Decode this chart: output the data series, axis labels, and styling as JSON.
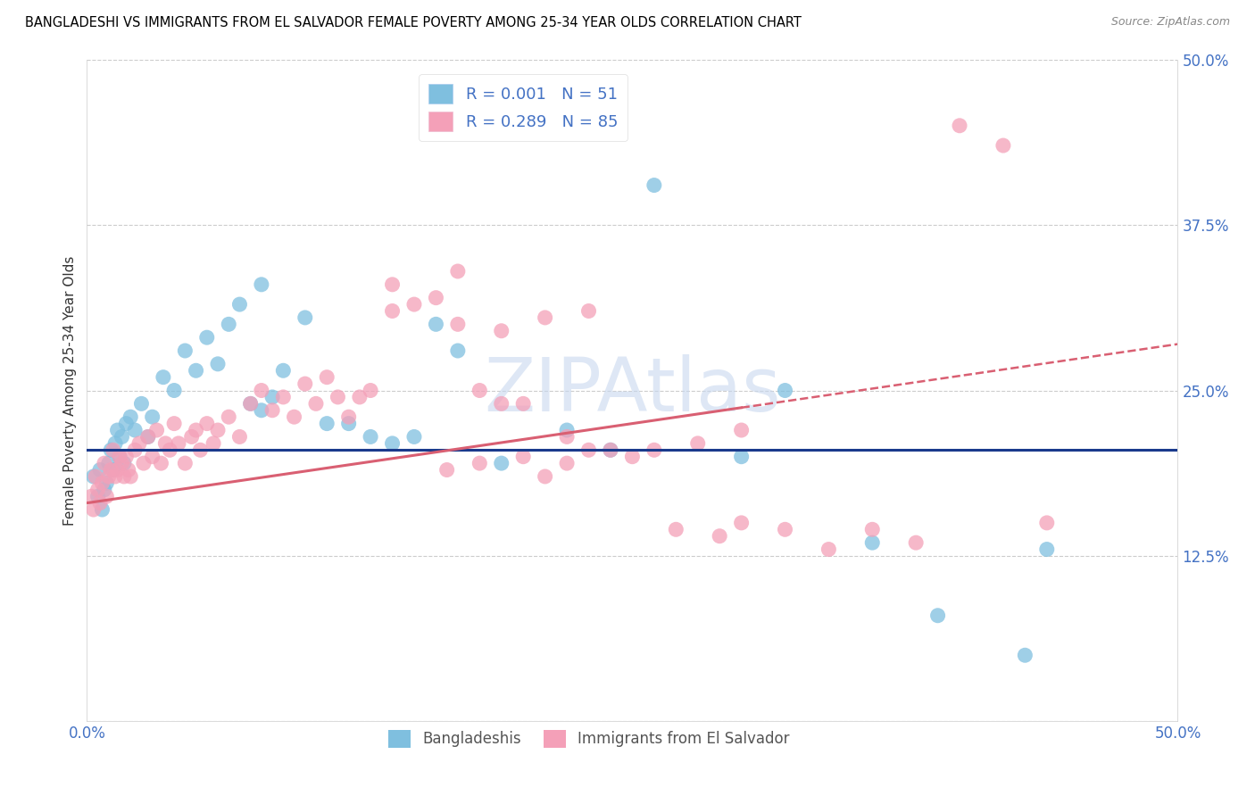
{
  "title": "BANGLADESHI VS IMMIGRANTS FROM EL SALVADOR FEMALE POVERTY AMONG 25-34 YEAR OLDS CORRELATION CHART",
  "source": "Source: ZipAtlas.com",
  "ylabel": "Female Poverty Among 25-34 Year Olds",
  "xlim": [
    0.0,
    50.0
  ],
  "ylim": [
    0.0,
    50.0
  ],
  "yticks": [
    0.0,
    12.5,
    25.0,
    37.5,
    50.0
  ],
  "ytick_labels": [
    "",
    "12.5%",
    "25.0%",
    "37.5%",
    "50.0%"
  ],
  "xticks": [
    0.0,
    12.5,
    25.0,
    37.5,
    50.0
  ],
  "xtick_labels": [
    "0.0%",
    "",
    "",
    "",
    "50.0%"
  ],
  "legend_r1": "R = 0.001",
  "legend_n1": "N = 51",
  "legend_r2": "R = 0.289",
  "legend_n2": "N = 85",
  "color_blue": "#7fbfdf",
  "color_pink": "#f4a0b8",
  "color_blue_line": "#1a3a8c",
  "color_pink_line": "#d95f72",
  "watermark": "ZIPAtlas",
  "watermark_color": "#c8d8ef",
  "title_fontsize": 10.5,
  "blue_line_y": 20.5,
  "pink_line_x0": 0.0,
  "pink_line_y0": 16.5,
  "pink_line_x1": 50.0,
  "pink_line_y1": 28.5,
  "pink_solid_x1": 30.0,
  "bangladeshi_x": [
    0.3,
    0.5,
    0.6,
    0.7,
    0.8,
    0.9,
    1.0,
    1.1,
    1.2,
    1.3,
    1.4,
    1.5,
    1.6,
    1.7,
    1.8,
    2.0,
    2.2,
    2.5,
    2.8,
    3.0,
    3.5,
    4.0,
    4.5,
    5.0,
    5.5,
    6.0,
    6.5,
    7.0,
    7.5,
    8.0,
    8.5,
    9.0,
    10.0,
    11.0,
    12.0,
    13.0,
    14.0,
    15.0,
    16.0,
    17.0,
    19.0,
    22.0,
    24.0,
    26.0,
    30.0,
    32.0,
    36.0,
    39.0,
    43.0,
    44.0,
    8.0
  ],
  "bangladeshi_y": [
    18.5,
    17.0,
    19.0,
    16.0,
    17.5,
    18.0,
    19.5,
    20.5,
    19.0,
    21.0,
    22.0,
    20.0,
    21.5,
    19.5,
    22.5,
    23.0,
    22.0,
    24.0,
    21.5,
    23.0,
    26.0,
    25.0,
    28.0,
    26.5,
    29.0,
    27.0,
    30.0,
    31.5,
    24.0,
    23.5,
    24.5,
    26.5,
    30.5,
    22.5,
    22.5,
    21.5,
    21.0,
    21.5,
    30.0,
    28.0,
    19.5,
    22.0,
    20.5,
    40.5,
    20.0,
    25.0,
    13.5,
    8.0,
    5.0,
    13.0,
    33.0
  ],
  "salvador_x": [
    0.2,
    0.3,
    0.4,
    0.5,
    0.6,
    0.7,
    0.8,
    0.9,
    1.0,
    1.1,
    1.2,
    1.3,
    1.4,
    1.5,
    1.6,
    1.7,
    1.8,
    1.9,
    2.0,
    2.2,
    2.4,
    2.6,
    2.8,
    3.0,
    3.2,
    3.4,
    3.6,
    3.8,
    4.0,
    4.2,
    4.5,
    4.8,
    5.0,
    5.2,
    5.5,
    5.8,
    6.0,
    6.5,
    7.0,
    7.5,
    8.0,
    8.5,
    9.0,
    9.5,
    10.0,
    10.5,
    11.0,
    11.5,
    12.0,
    12.5,
    13.0,
    14.0,
    15.0,
    16.0,
    17.0,
    18.0,
    19.0,
    20.0,
    22.0,
    23.0,
    25.0,
    27.0,
    29.0,
    30.0,
    32.0,
    34.0,
    36.0,
    38.0,
    40.0,
    42.0,
    44.0,
    16.5,
    21.0,
    26.0,
    28.0,
    30.0,
    18.0,
    20.0,
    24.0,
    22.0,
    14.0,
    17.0,
    19.0,
    21.0,
    23.0
  ],
  "salvador_y": [
    17.0,
    16.0,
    18.5,
    17.5,
    16.5,
    18.0,
    19.5,
    17.0,
    18.5,
    19.0,
    20.5,
    18.5,
    19.0,
    20.0,
    19.5,
    18.5,
    20.0,
    19.0,
    18.5,
    20.5,
    21.0,
    19.5,
    21.5,
    20.0,
    22.0,
    19.5,
    21.0,
    20.5,
    22.5,
    21.0,
    19.5,
    21.5,
    22.0,
    20.5,
    22.5,
    21.0,
    22.0,
    23.0,
    21.5,
    24.0,
    25.0,
    23.5,
    24.5,
    23.0,
    25.5,
    24.0,
    26.0,
    24.5,
    23.0,
    24.5,
    25.0,
    31.0,
    31.5,
    32.0,
    30.0,
    25.0,
    24.0,
    24.0,
    19.5,
    20.5,
    20.0,
    14.5,
    14.0,
    15.0,
    14.5,
    13.0,
    14.5,
    13.5,
    45.0,
    43.5,
    15.0,
    19.0,
    18.5,
    20.5,
    21.0,
    22.0,
    19.5,
    20.0,
    20.5,
    21.5,
    33.0,
    34.0,
    29.5,
    30.5,
    31.0
  ]
}
